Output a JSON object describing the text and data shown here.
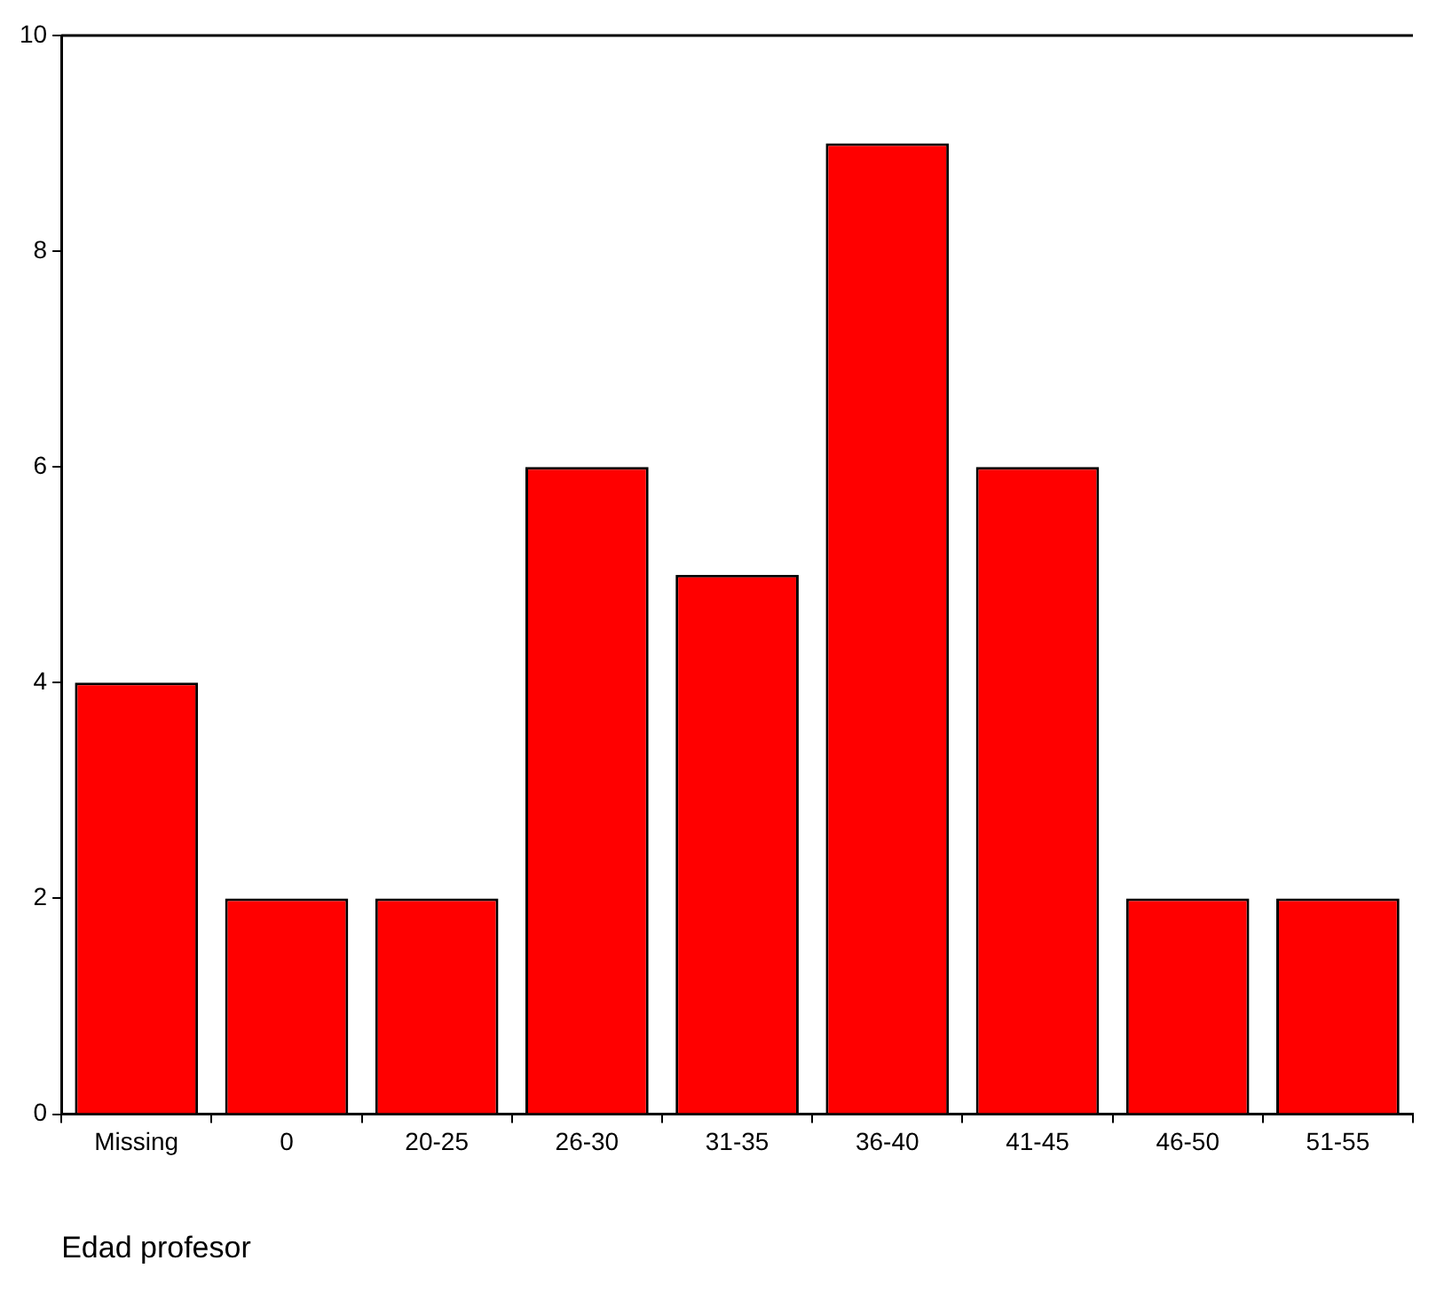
{
  "chart_data": {
    "type": "bar",
    "xlabel": "Edad profesor",
    "categories": [
      "Missing",
      "0",
      "20-25",
      "26-30",
      "31-35",
      "36-40",
      "41-45",
      "46-50",
      "51-55"
    ],
    "values": [
      4,
      2,
      2,
      6,
      5,
      9,
      6,
      2,
      2
    ],
    "color": "#ff0000",
    "ylim": [
      0,
      10
    ],
    "yticks": [
      0,
      2,
      4,
      6,
      8,
      10
    ],
    "grid": false,
    "legend": false
  }
}
